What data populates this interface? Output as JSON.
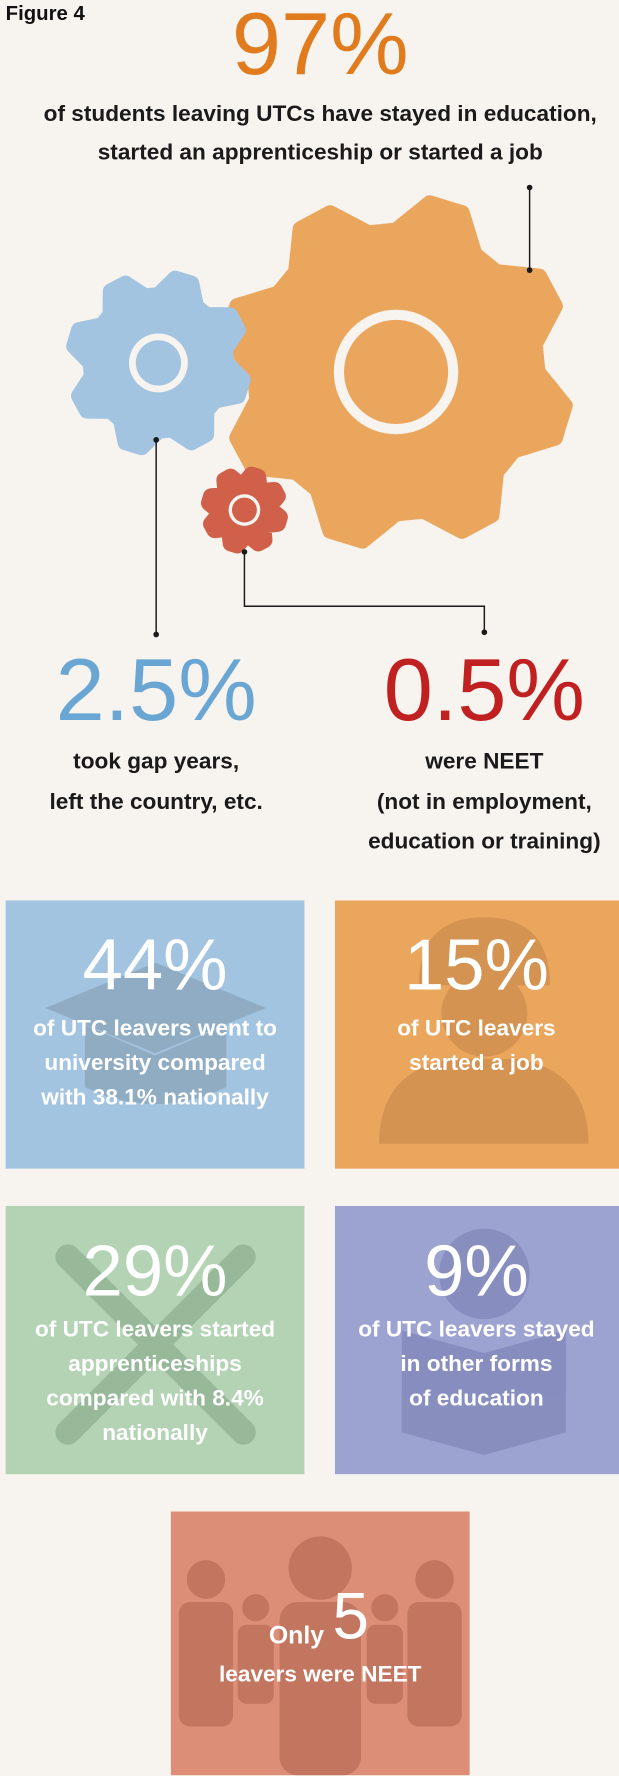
{
  "figure_label": "Figure 4",
  "headline": {
    "value": "97%",
    "lines": [
      "of students leaving UTCs have stayed in education,",
      "started an apprenticeship or started a job"
    ]
  },
  "left_stat": {
    "value": "2.5%",
    "lines": [
      "took gap years,",
      "left the country, etc."
    ]
  },
  "right_stat": {
    "value": "0.5%",
    "lines": [
      "were NEET",
      "(not in employment,",
      "education or training)"
    ]
  },
  "boxes": [
    {
      "value": "44%",
      "lines": [
        "of UTC leavers went to",
        "university compared",
        "with 38.1% nationally"
      ]
    },
    {
      "value": "15%",
      "lines": [
        "of UTC leavers",
        "started a job"
      ]
    },
    {
      "value": "29%",
      "lines": [
        "of UTC leavers started",
        "apprenticeships",
        "compared with 8.4%",
        "nationally"
      ]
    },
    {
      "value": "9%",
      "lines": [
        "of UTC leavers stayed",
        "in other forms",
        "of education"
      ]
    }
  ],
  "neet_box": {
    "prefix": "Only",
    "value": "5",
    "line": "leavers were NEET"
  }
}
